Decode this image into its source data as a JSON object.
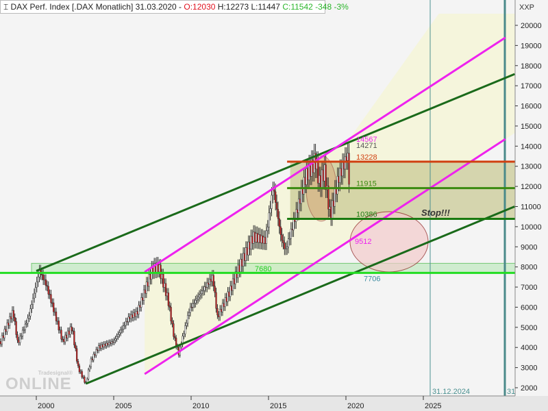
{
  "header": {
    "instrument": "DAX Perf. Index [.DAX  Monatlich]",
    "date": "31.03.2020 -",
    "open": "O:12030",
    "high": "H:12273",
    "low": "L:11447",
    "close_change": "C:11542 -348 -3%"
  },
  "axis_label": "XXP",
  "watermark": {
    "brand": "Tradesignal®",
    "product": "online"
  },
  "chart_data": {
    "type": "candlestick",
    "title": "DAX Perf. Index [.DAX  Monatlich]",
    "ylim": [
      1700,
      20500
    ],
    "y_ticks": [
      2000,
      3000,
      4000,
      5000,
      6000,
      7000,
      8000,
      9000,
      10000,
      11000,
      12000,
      13000,
      14000,
      15000,
      16000,
      17000,
      18000,
      19000,
      20000
    ],
    "x_ticks": [
      "2000",
      "2005",
      "2010",
      "2015",
      "2020",
      "2025"
    ],
    "xlim": [
      1997.65,
      2032.3
    ],
    "close_path": [
      [
        1997.7,
        4300
      ],
      [
        1998.5,
        5800
      ],
      [
        1998.8,
        4200
      ],
      [
        1999.5,
        5500
      ],
      [
        2000.2,
        7800
      ],
      [
        2000.6,
        7200
      ],
      [
        2001.0,
        6200
      ],
      [
        2001.7,
        4300
      ],
      [
        2002.3,
        5000
      ],
      [
        2002.7,
        3000
      ],
      [
        2003.2,
        2200
      ],
      [
        2003.5,
        3300
      ],
      [
        2004,
        4000
      ],
      [
        2005,
        4300
      ],
      [
        2006,
        5500
      ],
      [
        2006.5,
        5700
      ],
      [
        2007.5,
        7900
      ],
      [
        2007.9,
        8000
      ],
      [
        2008.5,
        6400
      ],
      [
        2008.9,
        4500
      ],
      [
        2009.2,
        3700
      ],
      [
        2009.9,
        5900
      ],
      [
        2010.9,
        7000
      ],
      [
        2011.4,
        7500
      ],
      [
        2011.7,
        5500
      ],
      [
        2012.5,
        6800
      ],
      [
        2013,
        7800
      ],
      [
        2014,
        9500
      ],
      [
        2014.8,
        9300
      ],
      [
        2015.3,
        12000
      ],
      [
        2015.8,
        9500
      ],
      [
        2016.1,
        8800
      ],
      [
        2016.8,
        10700
      ],
      [
        2017.4,
        12500
      ],
      [
        2017.9,
        13100
      ],
      [
        2018.0,
        13400
      ],
      [
        2018.3,
        12100
      ],
      [
        2018.6,
        12800
      ],
      [
        2018.98,
        10500
      ],
      [
        2019.5,
        12400
      ],
      [
        2019.95,
        13250
      ],
      [
        2020.1,
        13700
      ],
      [
        2020.25,
        11542
      ]
    ],
    "horizontal_levels": [
      {
        "value": 13228,
        "label": "13228",
        "color": "#d04010"
      },
      {
        "value": 11915,
        "label": "11915",
        "color": "#3a8a10"
      },
      {
        "value": 10386,
        "label": "10386",
        "color": "#1a7a10"
      },
      {
        "value": 7706,
        "label": "7706",
        "color": "#22dd22"
      }
    ],
    "labels": [
      {
        "value": 14567,
        "text": "14567",
        "color": "#ee22ee"
      },
      {
        "value": 14271,
        "text": "14271",
        "color": "#555"
      },
      {
        "value": 9512,
        "text": "9512",
        "color": "#ee22ee"
      },
      {
        "value": 7680,
        "text": "7680",
        "color": "#22cc22"
      }
    ],
    "trend_lines": [
      {
        "color": "#1a6a1a",
        "from": [
          2000,
          7800
        ],
        "to": [
          2030.9,
          17580
        ]
      },
      {
        "color": "#1a6a1a",
        "from": [
          2003.2,
          2200
        ],
        "to": [
          2030.9,
          11000
        ]
      },
      {
        "color": "#ee22ee",
        "from": [
          2007,
          7750
        ],
        "to": [
          2030.3,
          19390
        ]
      },
      {
        "color": "#ee22ee",
        "from": [
          2007,
          2680
        ],
        "to": [
          2030.3,
          14350
        ]
      }
    ],
    "annotation": "Stop!!!",
    "vertical_markers": [
      {
        "date": "31.12.2024",
        "label": "31.12.2024"
      },
      {
        "label": "31"
      }
    ]
  }
}
